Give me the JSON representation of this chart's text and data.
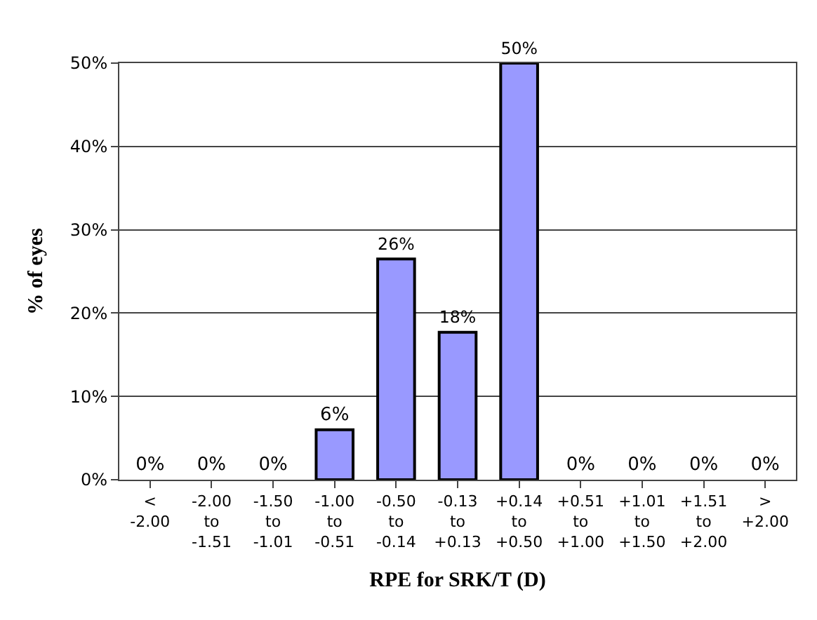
{
  "chart_data": {
    "type": "bar",
    "xlabel": "RPE for SRK/T (D)",
    "ylabel": "% of eyes",
    "categories": [
      "<\n-2.00",
      "-2.00\nto\n-1.51",
      "-1.50\nto\n-1.01",
      "-1.00\nto\n-0.51",
      "-0.50\nto\n-0.14",
      "-0.13\nto\n+0.13",
      "+0.14\nto\n+0.50",
      "+0.51\nto\n+1.00",
      "+1.01\nto\n+1.50",
      "+1.51\nto\n+2.00",
      ">\n+2.00"
    ],
    "values": [
      0,
      0,
      0,
      6,
      26.5,
      17.7,
      50,
      0,
      0,
      0,
      0
    ],
    "value_labels": [
      "0%",
      "0%",
      "0%",
      "6%",
      "26%",
      "18%",
      "50%",
      "0%",
      "0%",
      "0%",
      "0%"
    ],
    "color": "#9999ff",
    "ylim": [
      0,
      50
    ],
    "yticks": [
      {
        "value": 0,
        "label": "0%"
      },
      {
        "value": 10,
        "label": "10%"
      },
      {
        "value": 20,
        "label": "20%"
      },
      {
        "value": 30,
        "label": "30%"
      },
      {
        "value": 40,
        "label": "40%"
      },
      {
        "value": 50,
        "label": "50%"
      }
    ],
    "grid": "y",
    "legend": false
  }
}
